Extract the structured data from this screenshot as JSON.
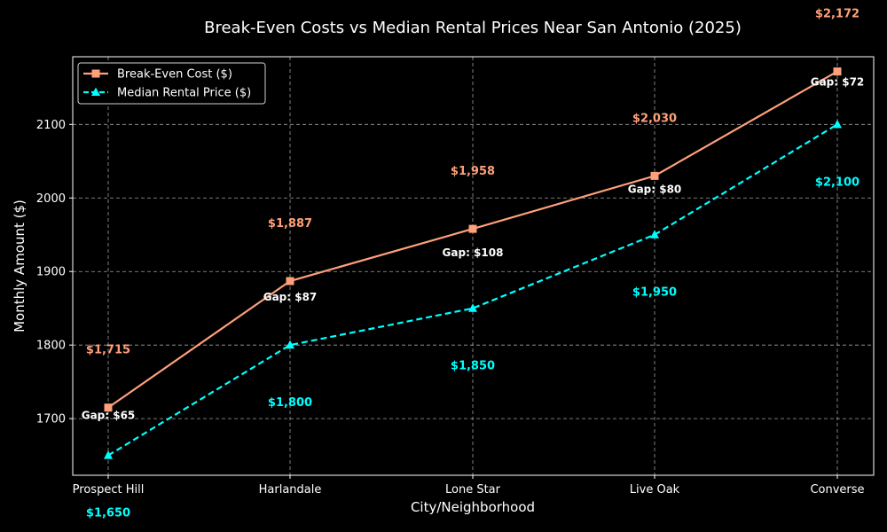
{
  "chart_data": {
    "type": "line",
    "title": "Break-Even Costs vs Median Rental Prices Near San Antonio (2025)",
    "xlabel": "City/Neighborhood",
    "ylabel": "Monthly Amount ($)",
    "categories": [
      "Prospect Hill",
      "Harlandale",
      "Lone Star",
      "Live Oak",
      "Converse"
    ],
    "yticks": [
      1700,
      1800,
      1900,
      2000,
      2100
    ],
    "ylim": [
      1623,
      2192
    ],
    "grid": true,
    "legend_position": "top-left",
    "series": [
      {
        "name": "Break-Even Cost ($)",
        "values": [
          1715,
          1887,
          1958,
          2030,
          2172
        ],
        "labels": [
          "$1,715",
          "$1,887",
          "$1,958",
          "$2,030",
          "$2,172"
        ],
        "color": "#ffa07a",
        "marker": "square",
        "line_style": "solid"
      },
      {
        "name": "Median Rental Price ($)",
        "values": [
          1650,
          1800,
          1850,
          1950,
          2100
        ],
        "labels": [
          "$1,650",
          "$1,800",
          "$1,850",
          "$1,950",
          "$2,100"
        ],
        "color": "#00ffff",
        "marker": "triangle",
        "line_style": "dashed"
      }
    ],
    "gap_labels": [
      "Gap: $65",
      "Gap: $87",
      "Gap: $108",
      "Gap: $80",
      "Gap: $72"
    ]
  }
}
